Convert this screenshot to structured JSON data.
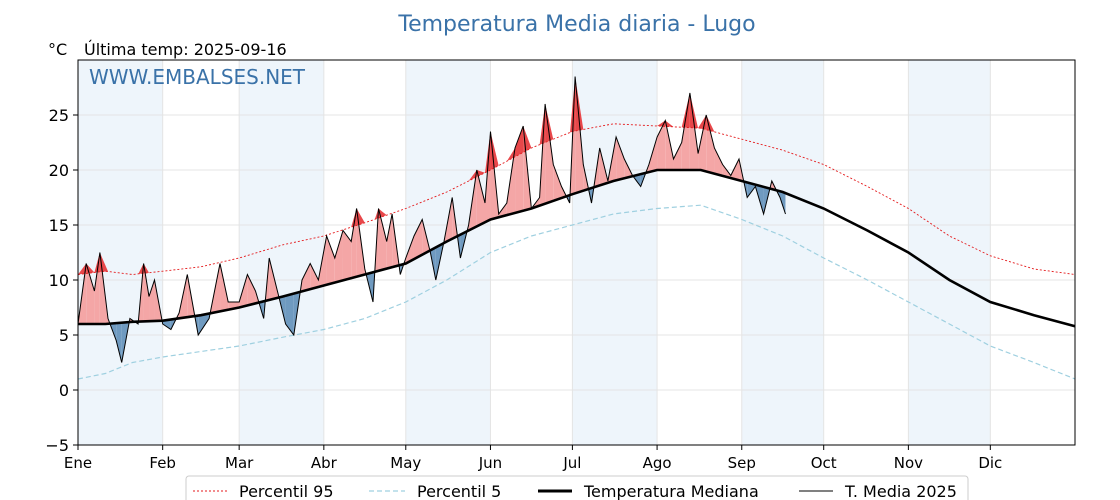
{
  "chart_data": {
    "type": "line",
    "title": "Temperatura Media diaria - Lugo",
    "unit_label": "°C",
    "last_temp_label": "Última temp: 2025-09-16",
    "watermark": "WWW.EMBALSES.NET",
    "ylim": [
      -5,
      30
    ],
    "yticks": [
      -5,
      0,
      5,
      10,
      15,
      20,
      25
    ],
    "xlim": [
      0,
      365
    ],
    "months": [
      {
        "label": "Ene",
        "day": 0
      },
      {
        "label": "Feb",
        "day": 31
      },
      {
        "label": "Mar",
        "day": 59
      },
      {
        "label": "Abr",
        "day": 90
      },
      {
        "label": "May",
        "day": 120
      },
      {
        "label": "Jun",
        "day": 151
      },
      {
        "label": "Jul",
        "day": 181
      },
      {
        "label": "Ago",
        "day": 212
      },
      {
        "label": "Sep",
        "day": 243
      },
      {
        "label": "Oct",
        "day": 273
      },
      {
        "label": "Nov",
        "day": 304
      },
      {
        "label": "Dic",
        "day": 334
      }
    ],
    "grid": true,
    "legend": "bottom",
    "colors": {
      "p95": "#e41a1c",
      "p5": "#9fd0e0",
      "median": "#000000",
      "current": "#000000",
      "above": "#f4a6a6",
      "above_strong": "#e8474a",
      "below": "#6f9ac0",
      "shade": "#eef5fb",
      "title": "#3a72a8"
    },
    "series": [
      {
        "key": "p95",
        "name": "Percentil 95",
        "x": [
          0,
          10,
          20,
          31,
          45,
          59,
          75,
          90,
          105,
          120,
          135,
          151,
          166,
          181,
          196,
          212,
          228,
          243,
          258,
          273,
          289,
          304,
          319,
          334,
          350,
          365
        ],
        "y": [
          10.5,
          10.8,
          10.5,
          10.8,
          11.2,
          12.0,
          13.2,
          14.0,
          15.2,
          16.5,
          18.0,
          20.0,
          22.0,
          23.5,
          24.2,
          24.0,
          23.8,
          22.8,
          21.8,
          20.5,
          18.5,
          16.5,
          14.0,
          12.2,
          11.0,
          10.5
        ]
      },
      {
        "key": "p5",
        "name": "Percentil 5",
        "x": [
          0,
          10,
          20,
          31,
          45,
          59,
          75,
          90,
          105,
          120,
          135,
          151,
          166,
          181,
          196,
          212,
          228,
          243,
          258,
          273,
          289,
          304,
          319,
          334,
          350,
          365
        ],
        "y": [
          1.0,
          1.5,
          2.5,
          3.0,
          3.5,
          4.0,
          4.8,
          5.5,
          6.5,
          8.0,
          10.0,
          12.5,
          14.0,
          15.0,
          16.0,
          16.5,
          16.8,
          15.5,
          14.0,
          12.0,
          10.0,
          8.0,
          6.0,
          4.0,
          2.5,
          1.0
        ]
      },
      {
        "key": "median",
        "name": "Temperatura Mediana",
        "x": [
          0,
          10,
          20,
          31,
          45,
          59,
          75,
          90,
          105,
          120,
          135,
          151,
          166,
          181,
          196,
          212,
          228,
          243,
          258,
          273,
          289,
          304,
          319,
          334,
          350,
          365
        ],
        "y": [
          6.0,
          6.0,
          6.2,
          6.3,
          6.8,
          7.5,
          8.5,
          9.5,
          10.5,
          11.5,
          13.5,
          15.5,
          16.5,
          17.8,
          19.0,
          20.0,
          20.0,
          19.0,
          18.0,
          16.5,
          14.5,
          12.5,
          10.0,
          8.0,
          6.8,
          5.8
        ]
      },
      {
        "key": "current",
        "name": "T. Media 2025",
        "x": [
          0,
          3,
          6,
          8,
          11,
          14,
          16,
          19,
          22,
          24,
          26,
          28,
          31,
          34,
          37,
          40,
          44,
          48,
          52,
          55,
          59,
          62,
          65,
          68,
          70,
          73,
          76,
          79,
          82,
          85,
          88,
          91,
          94,
          97,
          100,
          102,
          105,
          108,
          110,
          113,
          115,
          118,
          120,
          123,
          126,
          129,
          131,
          134,
          137,
          140,
          143,
          146,
          149,
          151,
          154,
          157,
          160,
          163,
          166,
          169,
          171,
          174,
          177,
          180,
          182,
          185,
          188,
          191,
          194,
          197,
          200,
          203,
          206,
          209,
          212,
          215,
          218,
          221,
          224,
          227,
          230,
          233,
          236,
          239,
          242,
          245,
          248,
          251,
          254,
          257,
          259
        ],
        "y": [
          6.0,
          11.5,
          9.0,
          12.5,
          6.5,
          4.5,
          2.5,
          6.5,
          6.0,
          11.5,
          8.5,
          10.0,
          6.0,
          5.5,
          7.0,
          10.5,
          5.0,
          6.5,
          11.5,
          8.0,
          8.0,
          10.5,
          9.0,
          6.5,
          12.0,
          9.0,
          6.0,
          5.0,
          10.0,
          11.5,
          10.0,
          14.0,
          12.0,
          14.5,
          13.5,
          16.5,
          11.0,
          8.0,
          16.5,
          13.5,
          16.0,
          10.5,
          12.0,
          14.0,
          15.5,
          12.5,
          10.0,
          13.5,
          17.5,
          12.0,
          15.0,
          20.0,
          17.0,
          23.5,
          16.0,
          17.0,
          22.0,
          24.0,
          16.5,
          17.5,
          26.0,
          20.5,
          18.5,
          17.0,
          28.5,
          20.5,
          17.0,
          22.0,
          19.0,
          23.0,
          21.0,
          19.5,
          18.5,
          20.5,
          23.0,
          24.5,
          21.0,
          22.5,
          27.0,
          21.5,
          25.0,
          22.0,
          20.5,
          19.5,
          21.0,
          17.5,
          18.5,
          16.0,
          19.0,
          17.5,
          16.0
        ]
      }
    ]
  }
}
